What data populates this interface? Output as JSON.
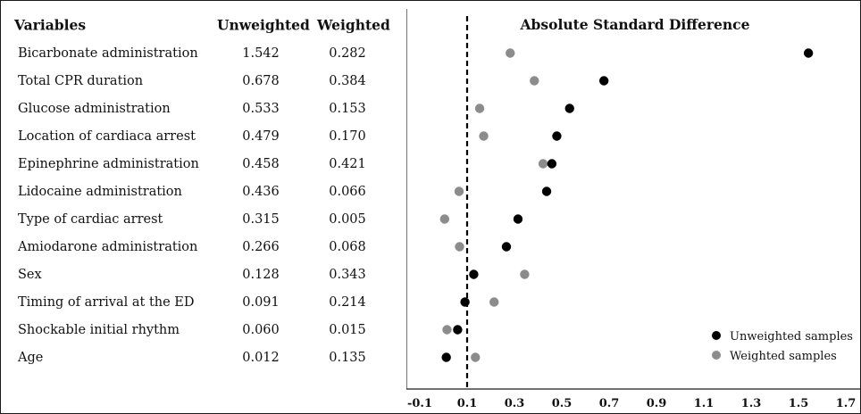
{
  "table": {
    "headers": {
      "variables": "Variables",
      "unweighted": "Unweighted",
      "weighted": "Weighted"
    },
    "rows": [
      {
        "variable": "Bicarbonate administration",
        "unweighted": "1.542",
        "weighted": "0.282"
      },
      {
        "variable": "Total CPR duration",
        "unweighted": "0.678",
        "weighted": "0.384"
      },
      {
        "variable": "Glucose administration",
        "unweighted": "0.533",
        "weighted": "0.153"
      },
      {
        "variable": "Location of cardiaca arrest",
        "unweighted": "0.479",
        "weighted": "0.170"
      },
      {
        "variable": "Epinephrine administration",
        "unweighted": "0.458",
        "weighted": "0.421"
      },
      {
        "variable": "Lidocaine administration",
        "unweighted": "0.436",
        "weighted": "0.066"
      },
      {
        "variable": "Type of cardiac arrest",
        "unweighted": "0.315",
        "weighted": "0.005"
      },
      {
        "variable": "Amiodarone administration",
        "unweighted": "0.266",
        "weighted": "0.068"
      },
      {
        "variable": "Sex",
        "unweighted": "0.128",
        "weighted": "0.343"
      },
      {
        "variable": "Timing of arrival at the ED",
        "unweighted": "0.091",
        "weighted": "0.214"
      },
      {
        "variable": "Shockable initial rhythm",
        "unweighted": "0.060",
        "weighted": "0.015"
      },
      {
        "variable": "Age",
        "unweighted": "0.012",
        "weighted": "0.135"
      }
    ]
  },
  "chart_data": {
    "type": "scatter",
    "title": "Absolute Standard Difference",
    "xlabel": "",
    "ylabel": "",
    "xlim": [
      -0.1,
      1.7
    ],
    "xticks": [
      -0.1,
      0.1,
      0.3,
      0.5,
      0.7,
      0.9,
      1.1,
      1.3,
      1.5,
      1.7
    ],
    "xtick_labels": [
      "-0.1",
      "0.1",
      "0.3",
      "0.5",
      "0.7",
      "0.9",
      "1.1",
      "1.3",
      "1.5",
      "1.7"
    ],
    "reference_line_x": 0.1,
    "reference_line_style": "dashed",
    "grid": false,
    "legend_position": "bottom-right",
    "categories": [
      "Bicarbonate administration",
      "Total CPR duration",
      "Glucose administration",
      "Location of cardiaca arrest",
      "Epinephrine administration",
      "Lidocaine administration",
      "Type of cardiac arrest",
      "Amiodarone administration",
      "Sex",
      "Timing of arrival at the ED",
      "Shockable initial rhythm",
      "Age"
    ],
    "series": [
      {
        "name": "Unweighted samples",
        "color": "#000000",
        "values": [
          1.542,
          0.678,
          0.533,
          0.479,
          0.458,
          0.436,
          0.315,
          0.266,
          0.128,
          0.091,
          0.06,
          0.012
        ]
      },
      {
        "name": "Weighted samples",
        "color": "#8c8c8c",
        "values": [
          0.282,
          0.384,
          0.153,
          0.17,
          0.421,
          0.066,
          0.005,
          0.068,
          0.343,
          0.214,
          0.015,
          0.135
        ]
      }
    ]
  }
}
